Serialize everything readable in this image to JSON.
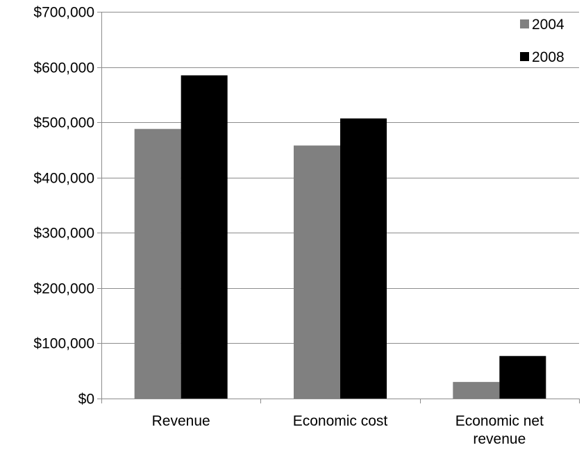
{
  "chart_data": {
    "type": "bar",
    "categories": [
      "Revenue",
      "Economic cost",
      "Economic net revenue"
    ],
    "category_lines": [
      [
        "Revenue"
      ],
      [
        "Economic cost"
      ],
      [
        "Economic net",
        "revenue"
      ]
    ],
    "series": [
      {
        "name": "2004",
        "values": [
          488000,
          458000,
          30000
        ],
        "color": "#808080"
      },
      {
        "name": "2008",
        "values": [
          585000,
          507000,
          77000
        ],
        "color": "#000000"
      }
    ],
    "ylim": [
      0,
      700000
    ],
    "yticks": [
      0,
      100000,
      200000,
      300000,
      400000,
      500000,
      600000,
      700000
    ],
    "ytick_labels": [
      "$0",
      "$100,000",
      "$200,000",
      "$300,000",
      "$400,000",
      "$500,000",
      "$600,000",
      "$700,000"
    ],
    "grid": true,
    "legend_position": "top-right",
    "title": "",
    "xlabel": "",
    "ylabel": ""
  }
}
